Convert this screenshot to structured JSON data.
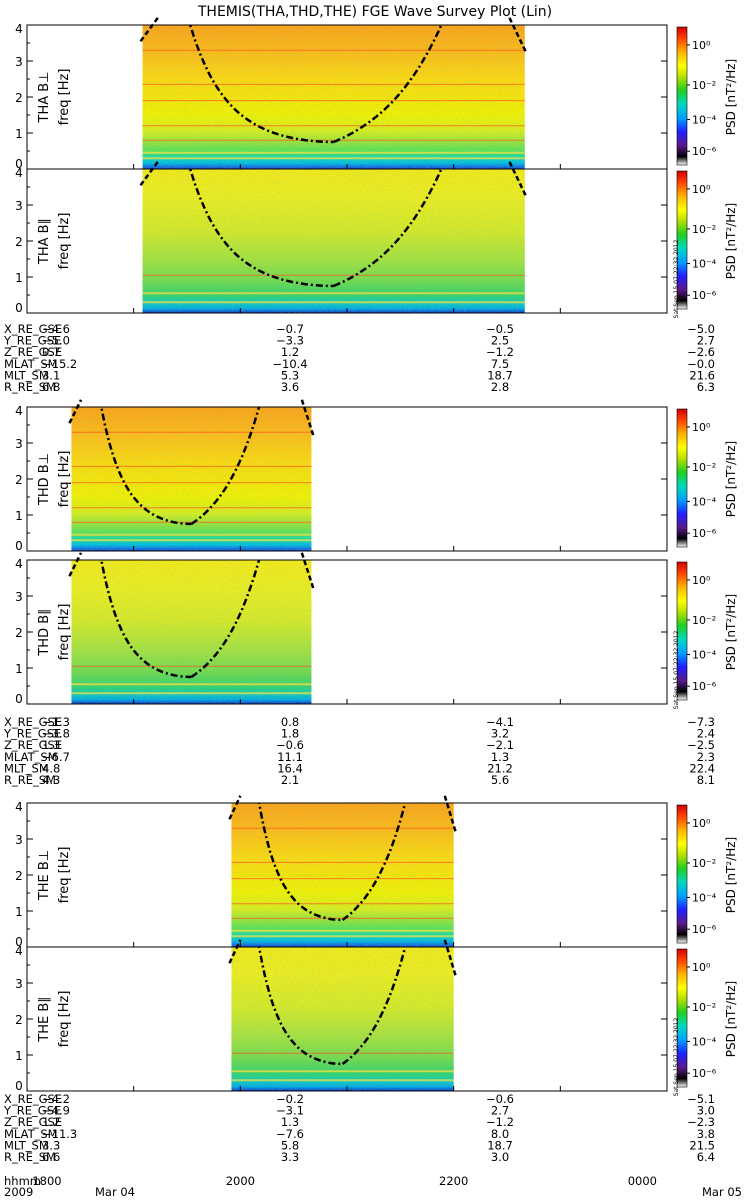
{
  "title": "THEMIS(THA,THD,THE) FGE Wave Survey Plot (Lin)",
  "colorbar": {
    "label": "PSD [nT²/Hz]",
    "ticks": [
      "10⁰",
      "10⁻²",
      "10⁻⁴",
      "10⁻⁶"
    ],
    "stamp": "Sat Sep 15 07:22:32 2012"
  },
  "yaxis": {
    "label": "freq [Hz]",
    "ticks": [
      "0",
      "1",
      "2",
      "3",
      "4"
    ],
    "range": [
      0,
      4
    ]
  },
  "panels": [
    {
      "probe": "THA",
      "label": "THA B⊥",
      "x_start": "19:05",
      "x_end": "22:40"
    },
    {
      "probe": "THA",
      "label": "THA B∥",
      "x_start": "19:05",
      "x_end": "22:40"
    },
    {
      "probe": "THD",
      "label": "THD B⊥",
      "x_start": "18:25",
      "x_end": "20:40"
    },
    {
      "probe": "THD",
      "label": "THD B∥",
      "x_start": "18:25",
      "x_end": "20:40"
    },
    {
      "probe": "THE",
      "label": "THE B⊥",
      "x_start": "19:55",
      "x_end": "22:00"
    },
    {
      "probe": "THE",
      "label": "THE B∥",
      "x_start": "19:55",
      "x_end": "22:00"
    }
  ],
  "ephemeris_blocks": [
    {
      "rows": [
        {
          "name": "X_RE_GSE",
          "values": [
            "−4.6",
            "−0.7",
            "−0.5",
            "−5.0"
          ]
        },
        {
          "name": "Y_RE_GSE",
          "values": [
            "−5.0",
            "−3.3",
            "2.5",
            "2.7"
          ]
        },
        {
          "name": "Z_RE_GSE",
          "values": [
            "0.7",
            "1.2",
            "−1.2",
            "−2.6"
          ]
        },
        {
          "name": "MLAT_SM",
          "values": [
            "−15.2",
            "−10.4",
            "7.5",
            "−0.0"
          ]
        },
        {
          "name": "MLT_SM",
          "values": [
            "3.1",
            "5.3",
            "18.7",
            "21.6"
          ]
        },
        {
          "name": "R_RE_SM",
          "values": [
            "6.8",
            "3.6",
            "2.8",
            "6.3"
          ]
        }
      ]
    },
    {
      "rows": [
        {
          "name": "X_RE_GSE",
          "values": [
            "−1.3",
            "0.8",
            "−4.1",
            "−7.3"
          ]
        },
        {
          "name": "Y_RE_GSE",
          "values": [
            "−3.8",
            "1.8",
            "3.2",
            "2.4"
          ]
        },
        {
          "name": "Z_RE_GSE",
          "values": [
            "1.3",
            "−0.6",
            "−2.1",
            "−2.5"
          ]
        },
        {
          "name": "MLAT_SM",
          "values": [
            "−6.7",
            "11.1",
            "1.3",
            "2.3"
          ]
        },
        {
          "name": "MLT_SM",
          "values": [
            "4.8",
            "16.4",
            "21.2",
            "22.4"
          ]
        },
        {
          "name": "R_RE_SM",
          "values": [
            "4.3",
            "2.1",
            "5.6",
            "8.1"
          ]
        }
      ]
    },
    {
      "rows": [
        {
          "name": "X_RE_GSE",
          "values": [
            "−4.2",
            "−0.2",
            "−0.6",
            "−5.1"
          ]
        },
        {
          "name": "Y_RE_GSE",
          "values": [
            "−4.9",
            "−3.1",
            "2.7",
            "3.0"
          ]
        },
        {
          "name": "Z_RE_GSE",
          "values": [
            "1.2",
            "1.3",
            "−1.2",
            "−2.3"
          ]
        },
        {
          "name": "MLAT_SM",
          "values": [
            "−11.3",
            "−7.6",
            "8.0",
            "3.8"
          ]
        },
        {
          "name": "MLT_SM",
          "values": [
            "3.3",
            "5.8",
            "18.7",
            "21.5"
          ]
        },
        {
          "name": "R_RE_SM",
          "values": [
            "6.6",
            "3.3",
            "3.0",
            "6.4"
          ]
        }
      ]
    }
  ],
  "time_axis": {
    "label": "hhmm",
    "ticks": [
      "1800",
      "2000",
      "2200",
      "0000"
    ],
    "year": "2009",
    "date_start": "Mar 04",
    "date_end": "Mar 05"
  },
  "chart_data": {
    "type": "heatmap",
    "title": "THEMIS(THA,THD,THE) FGE Wave Survey Plot (Lin)",
    "ylabel": "freq [Hz]",
    "ylim": [
      0,
      4
    ],
    "xlim": [
      "2009-03-04 18:00",
      "2009-03-05 00:00"
    ],
    "colorbar_label": "PSD [nT²/Hz]",
    "colorbar_range": [
      "10⁻⁷",
      "10¹"
    ],
    "colorbar_scale": "log",
    "grid": false,
    "panels": [
      "THA B⊥",
      "THA B∥",
      "THD B⊥",
      "THD B∥",
      "THE B⊥",
      "THE B∥"
    ]
  }
}
